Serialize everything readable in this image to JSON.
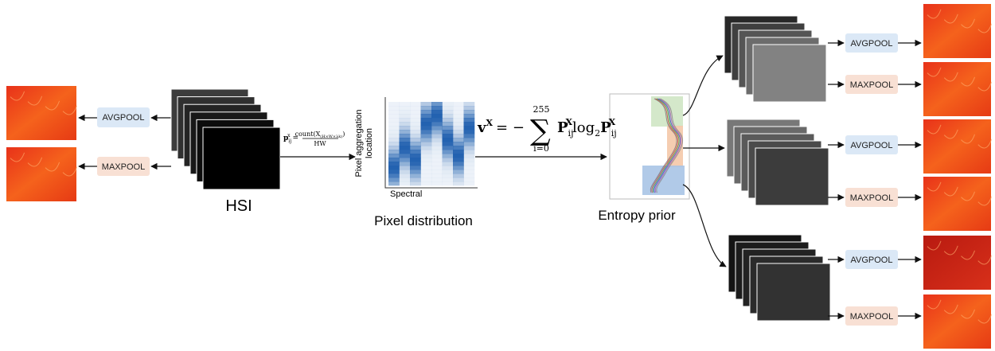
{
  "left_outputs": {
    "avgpool": "AVGPOOL",
    "maxpool": "MAXPOOL"
  },
  "hsi": {
    "label": "HSI"
  },
  "count_formula": {
    "lhs": "p",
    "lhs_sub": "ij",
    "lhs_sup": "x",
    "equals": "=",
    "numerator": "count(X",
    "numerator_sub": "(H×W×λk)",
    "numerator_close": ")",
    "denominator": "HW"
  },
  "pixel_distribution": {
    "y_axis_label": [
      "Pixel aggregation",
      "location"
    ],
    "x_axis_label": "Spectral",
    "label": "Pixel distribution"
  },
  "entropy_formula": {
    "lhs": "v",
    "lhs_sup": "X",
    "equals": "= −",
    "sum": "∑",
    "sum_upper": "255",
    "sum_lower": "i=0",
    "term1": "P",
    "term1_sub": "ij",
    "term1_sup": "X",
    "log": "log",
    "log_sub": "2",
    "term2": "P",
    "term2_sub": "ij",
    "term2_sup": "X"
  },
  "entropy_prior": {
    "label": "Entropy prior"
  },
  "branches": [
    {
      "avgpool": "AVGPOOL",
      "maxpool": "MAXPOOL"
    },
    {
      "avgpool": "AVGPOOL",
      "maxpool": "MAXPOOL"
    },
    {
      "avgpool": "AVGPOOL",
      "maxpool": "MAXPOOL"
    }
  ]
}
